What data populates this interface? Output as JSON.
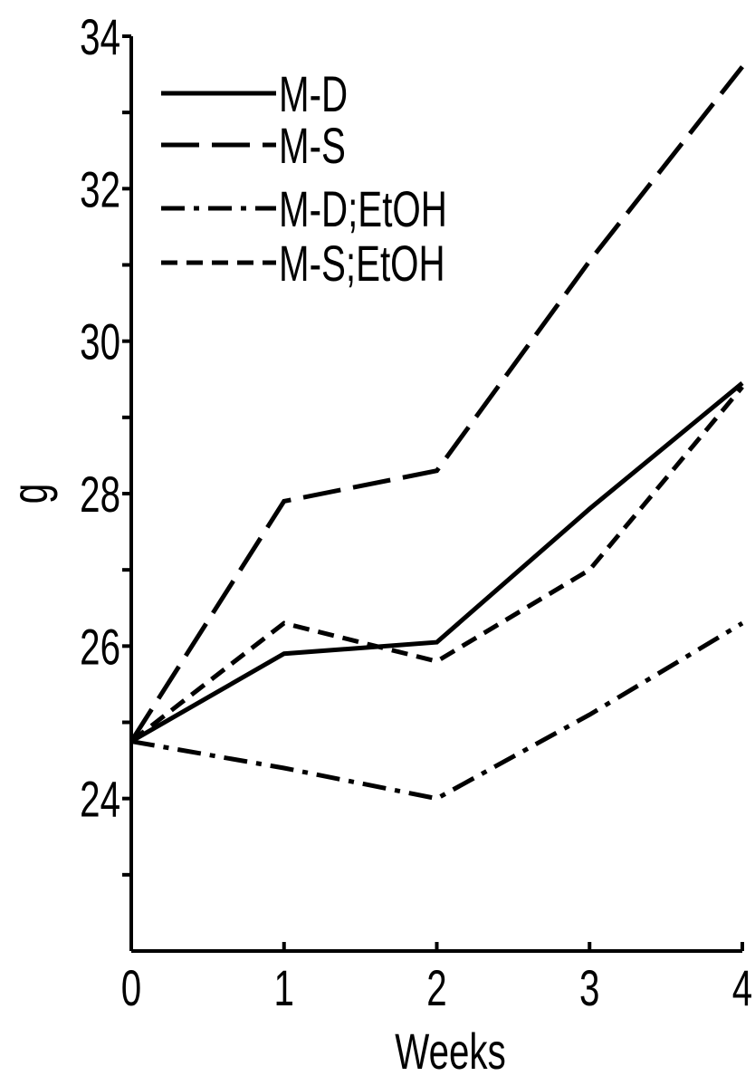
{
  "chart_data": {
    "type": "line",
    "xlabel": "Weeks",
    "ylabel": "g",
    "x": [
      0,
      1,
      2,
      3,
      4
    ],
    "series": [
      {
        "name": "M-D",
        "color": "#000000",
        "style": "solid",
        "values": [
          24.75,
          25.9,
          26.05,
          27.8,
          29.45
        ]
      },
      {
        "name": "M-S",
        "color": "#000000",
        "style": "long-dash",
        "values": [
          24.75,
          27.9,
          28.3,
          31.05,
          33.6
        ]
      },
      {
        "name": "M-D;EtOH",
        "color": "#000000",
        "style": "dash-dot",
        "values": [
          24.75,
          24.4,
          24.0,
          25.1,
          26.3
        ]
      },
      {
        "name": "M-S;EtOH",
        "color": "#000000",
        "style": "dash",
        "values": [
          24.75,
          26.3,
          25.8,
          27.0,
          29.4
        ]
      }
    ],
    "xlim": [
      0,
      4
    ],
    "xticks": [
      0,
      1,
      2,
      3,
      4
    ],
    "ylim": [
      22,
      34
    ],
    "yticks": [
      24,
      26,
      28,
      30,
      32,
      34
    ],
    "yticks_minor": [
      23,
      25,
      27,
      29,
      31,
      33
    ],
    "legend": "upper left",
    "grid": false
  }
}
